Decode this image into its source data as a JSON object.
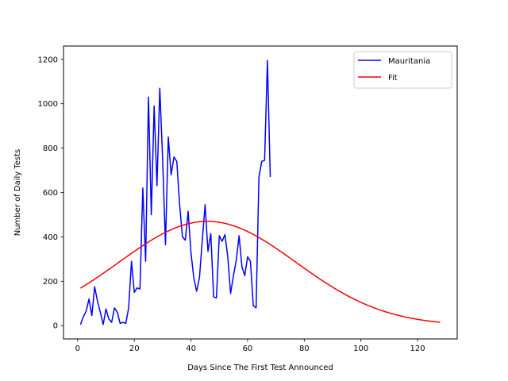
{
  "chart_data": {
    "type": "line",
    "title": "",
    "xlabel": "Days Since The First Test Announced",
    "ylabel": "Number of Daily Tests",
    "xlim": [
      -5,
      134
    ],
    "ylim": [
      -60,
      1260
    ],
    "xticks": [
      0,
      20,
      40,
      60,
      80,
      100,
      120
    ],
    "yticks": [
      0,
      200,
      400,
      600,
      800,
      1000,
      1200
    ],
    "grid": false,
    "legend_position": "top-right",
    "series": [
      {
        "name": "Mauritania",
        "color": "#0000ff",
        "x": [
          1,
          2,
          3,
          4,
          5,
          6,
          7,
          8,
          9,
          10,
          11,
          12,
          13,
          14,
          15,
          16,
          17,
          18,
          19,
          20,
          21,
          22,
          23,
          24,
          25,
          26,
          27,
          28,
          29,
          30,
          31,
          32,
          33,
          34,
          35,
          36,
          37,
          38,
          39,
          40,
          41,
          42,
          43,
          44,
          45,
          46,
          47,
          48,
          49,
          50,
          51,
          52,
          53,
          54,
          55,
          56,
          57,
          58,
          59,
          60,
          61,
          62,
          63,
          64,
          65,
          66,
          67,
          68
        ],
        "y": [
          5,
          40,
          65,
          120,
          45,
          175,
          110,
          60,
          5,
          75,
          30,
          15,
          80,
          60,
          10,
          15,
          10,
          80,
          290,
          150,
          170,
          165,
          620,
          290,
          1030,
          500,
          990,
          630,
          1070,
          750,
          365,
          850,
          680,
          760,
          740,
          545,
          400,
          385,
          515,
          330,
          215,
          155,
          215,
          385,
          545,
          335,
          415,
          130,
          125,
          405,
          380,
          410,
          310,
          145,
          225,
          295,
          405,
          265,
          225,
          310,
          290,
          90,
          80,
          670,
          740,
          745,
          1195,
          670
        ]
      },
      {
        "name": "Fit",
        "color": "#ff0000",
        "fit": {
          "amplitude": 470,
          "mean": 45.8,
          "sigma": 31.3,
          "x_start": 1,
          "x_end": 128
        }
      }
    ]
  }
}
